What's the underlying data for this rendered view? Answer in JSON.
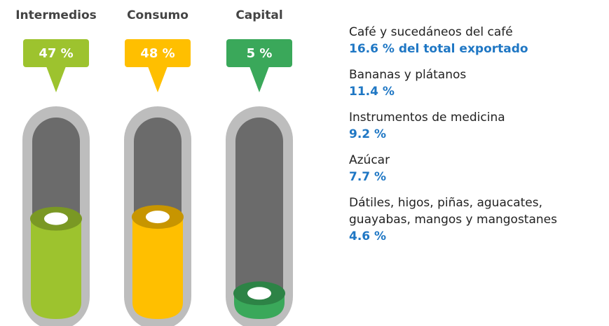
{
  "chart_data": {
    "type": "gauge",
    "categories": [
      "Intermedios",
      "Consumo",
      "Capital"
    ],
    "values": [
      47,
      48,
      5
    ],
    "value_labels": [
      "47 %",
      "48 %",
      "5 %"
    ],
    "colors": [
      "#9dc32e",
      "#ffbf00",
      "#3aa85a"
    ],
    "ylim": [
      0,
      100
    ]
  },
  "products": [
    {
      "name": "Café y sucedáneos del café",
      "share": "16.6 % del total exportado"
    },
    {
      "name": "Bananas y plátanos",
      "share": "11.4 %"
    },
    {
      "name": "Instrumentos de medicina",
      "share": "9.2 %"
    },
    {
      "name": "Azúcar",
      "share": "7.7 %"
    },
    {
      "name": "Dátiles, higos, piñas, aguacates, guayabas, mangos y mangostanes",
      "share": "4.6 %"
    }
  ]
}
